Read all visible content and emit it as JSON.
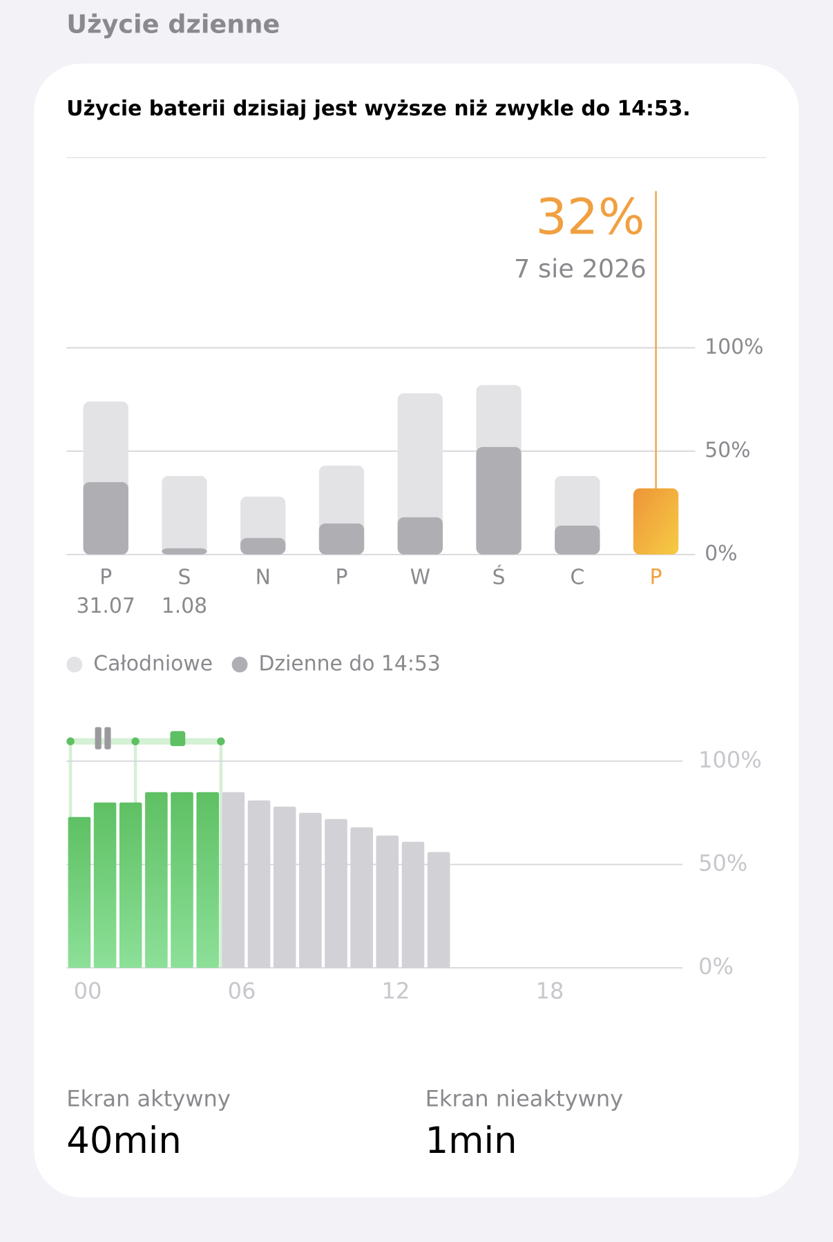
{
  "section_title": "Użycie dzienne",
  "summary": "Użycie baterii dzisiaj jest wyższe niż zwykle do 14:53.",
  "chart_data": [
    {
      "type": "bar",
      "categories": [
        "P",
        "S",
        "N",
        "P",
        "W",
        "Ś",
        "C",
        "P"
      ],
      "sublabels": [
        "31.07",
        "1.08",
        null,
        null,
        null,
        null,
        null,
        null
      ],
      "series": [
        {
          "name": "Całodniowe",
          "color": "#e3e3e6",
          "values": [
            74,
            38,
            28,
            43,
            78,
            82,
            38,
            null
          ]
        },
        {
          "name": "Dzienne do 14:53",
          "color": "#aeaeb3",
          "values": [
            35,
            3,
            8,
            15,
            18,
            52,
            14,
            32
          ],
          "value_labels": [
            null,
            null,
            null,
            null,
            null,
            null,
            null,
            "32%"
          ]
        }
      ],
      "highlight_color": "#f0a040",
      "selected_date": "7 sie 2026",
      "ylim": [
        0,
        100
      ],
      "yticks": [
        {
          "value": 0,
          "label": "0%"
        },
        {
          "value": 50,
          "label": "50%"
        },
        {
          "value": 100,
          "label": "100%"
        }
      ],
      "grid": true
    },
    {
      "type": "bar",
      "x": [
        0,
        1,
        2,
        3,
        4,
        5,
        6,
        7,
        8,
        9,
        10,
        11,
        12,
        13,
        14
      ],
      "series": [
        {
          "color": "#6cc870",
          "values": [
            73,
            80,
            80,
            85,
            85,
            85,
            null,
            null,
            null,
            null,
            null,
            null,
            null,
            null,
            null
          ]
        },
        {
          "color": "#d1d1d6",
          "values": [
            null,
            null,
            null,
            null,
            null,
            null,
            85,
            81,
            78,
            75,
            72,
            68,
            64,
            61,
            56
          ]
        }
      ],
      "xlim": [
        0,
        24
      ],
      "xticks": [
        {
          "value": 0,
          "label": "00"
        },
        {
          "value": 6,
          "label": "06"
        },
        {
          "value": 12,
          "label": "12"
        },
        {
          "value": 18,
          "label": "18"
        }
      ],
      "ylim": [
        0,
        100
      ],
      "yticks": [
        {
          "value": 0,
          "label": "0%"
        },
        {
          "value": 50,
          "label": "50%"
        },
        {
          "value": 100,
          "label": "100%"
        }
      ],
      "grid": true
    }
  ],
  "stats": [
    {
      "label": "Ekran aktywny",
      "value": "40min"
    },
    {
      "label": "Ekran nieaktywny",
      "value": "1min"
    }
  ]
}
